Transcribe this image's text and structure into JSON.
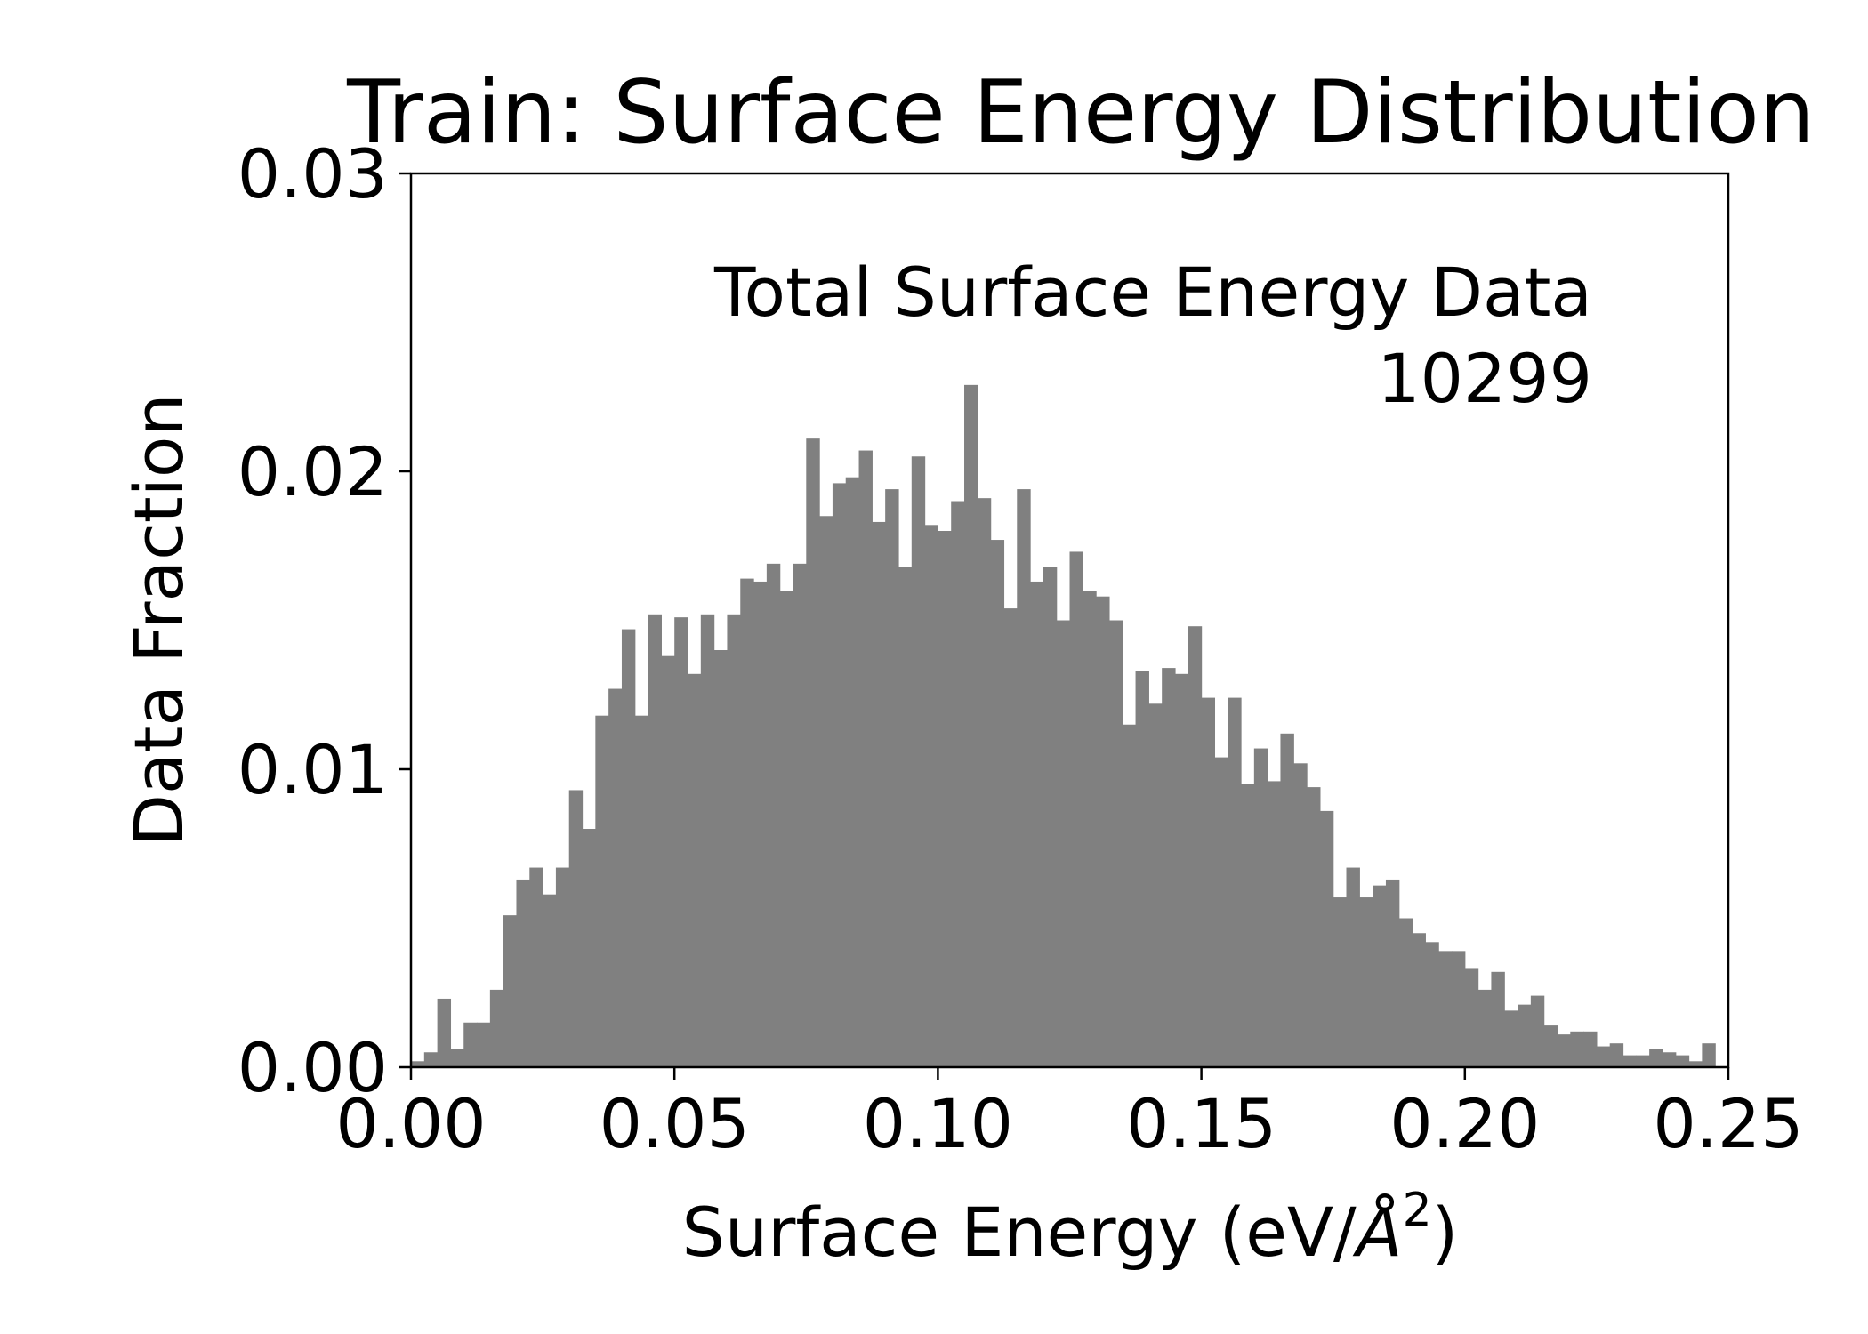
{
  "chart_data": {
    "type": "bar",
    "title": "Train: Surface Energy Distribution",
    "xlabel": "Surface Energy (eV/",
    "xlabel_unit": "Å",
    "xlabel_exponent": "2",
    "xlabel_close": ")",
    "ylabel": "Data Fraction",
    "xlim": [
      0,
      0.25
    ],
    "ylim": [
      0,
      0.03
    ],
    "xticks": [
      0,
      0.05,
      0.1,
      0.15,
      0.2,
      0.25
    ],
    "xtick_labels": [
      "0.00",
      "0.05",
      "0.10",
      "0.15",
      "0.20",
      "0.25"
    ],
    "yticks": [
      0,
      0.01,
      0.02,
      0.03
    ],
    "ytick_labels": [
      "0.00",
      "0.01",
      "0.02",
      "0.03"
    ],
    "bin_width": 0.0025,
    "bar_color": "#808080",
    "annotation": {
      "line1": "Total Surface Energy Data",
      "line2": "10299",
      "placement": "top-right"
    },
    "grid": false,
    "values": [
      0.0002,
      0.0005,
      0.0023,
      0.0006,
      0.0015,
      0.0015,
      0.0026,
      0.0051,
      0.0063,
      0.0067,
      0.0058,
      0.0067,
      0.0093,
      0.008,
      0.0118,
      0.0127,
      0.0147,
      0.0118,
      0.0152,
      0.0138,
      0.0151,
      0.0132,
      0.0152,
      0.014,
      0.0152,
      0.0164,
      0.0163,
      0.0169,
      0.016,
      0.0169,
      0.0211,
      0.0185,
      0.0196,
      0.0198,
      0.0207,
      0.0183,
      0.0194,
      0.0168,
      0.0205,
      0.0182,
      0.018,
      0.019,
      0.0229,
      0.0191,
      0.0177,
      0.0154,
      0.0194,
      0.0163,
      0.0168,
      0.015,
      0.0173,
      0.016,
      0.0158,
      0.015,
      0.0115,
      0.0133,
      0.0122,
      0.0134,
      0.0132,
      0.0148,
      0.0124,
      0.0104,
      0.0124,
      0.0095,
      0.0107,
      0.0096,
      0.0112,
      0.0102,
      0.0094,
      0.0086,
      0.0057,
      0.0067,
      0.0057,
      0.0061,
      0.0063,
      0.005,
      0.0045,
      0.0042,
      0.0039,
      0.0039,
      0.0033,
      0.0026,
      0.0032,
      0.0019,
      0.0021,
      0.0024,
      0.0014,
      0.0011,
      0.0012,
      0.0012,
      0.0007,
      0.0008,
      0.0004,
      0.0004,
      0.0006,
      0.0005,
      0.0004,
      0.0002,
      0.0008
    ]
  }
}
